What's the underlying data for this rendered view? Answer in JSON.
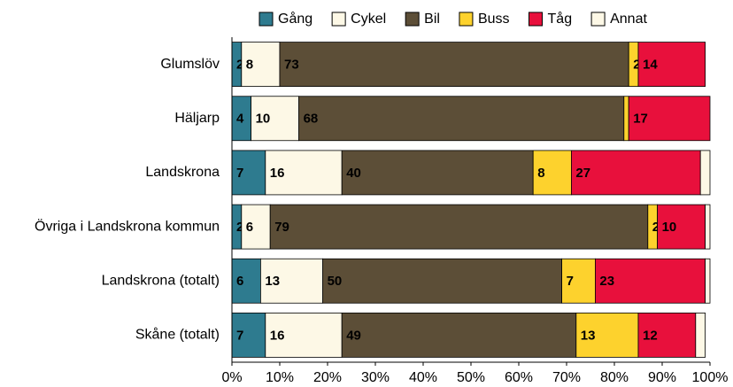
{
  "chart_data": {
    "type": "stacked-barh",
    "categories": [
      "Glumslöv",
      "Häljarp",
      "Landskrona",
      "Övriga i Landskrona kommun",
      "Landskrona (totalt)",
      "Skåne (totalt)"
    ],
    "series": [
      {
        "name": "Gång",
        "color": "#2e7b8f",
        "values": [
          2,
          4,
          7,
          2,
          6,
          7
        ]
      },
      {
        "name": "Cykel",
        "color": "#fdf8e6",
        "values": [
          8,
          10,
          16,
          6,
          13,
          16
        ]
      },
      {
        "name": "Bil",
        "color": "#5c4e37",
        "values": [
          73,
          68,
          40,
          79,
          50,
          49
        ]
      },
      {
        "name": "Buss",
        "color": "#fdd22d",
        "values": [
          2,
          1,
          8,
          2,
          7,
          13
        ]
      },
      {
        "name": "Tåg",
        "color": "#e8103c",
        "values": [
          14,
          17,
          27,
          10,
          23,
          12
        ]
      },
      {
        "name": "Annat",
        "color": "#fdf8e6",
        "values": [
          0,
          0,
          2,
          1,
          1,
          2
        ]
      }
    ],
    "xlim": [
      0,
      100
    ],
    "xticks": [
      {
        "value": 0,
        "label": "0%"
      },
      {
        "value": 10,
        "label": "10%"
      },
      {
        "value": 20,
        "label": "20%"
      },
      {
        "value": 30,
        "label": "30%"
      },
      {
        "value": 40,
        "label": "40%"
      },
      {
        "value": 50,
        "label": "50%"
      },
      {
        "value": 60,
        "label": "60%"
      },
      {
        "value": 70,
        "label": "70%"
      },
      {
        "value": 80,
        "label": "80%"
      },
      {
        "value": 90,
        "label": "90%"
      },
      {
        "value": 100,
        "label": "100%"
      }
    ],
    "legend": "top"
  }
}
